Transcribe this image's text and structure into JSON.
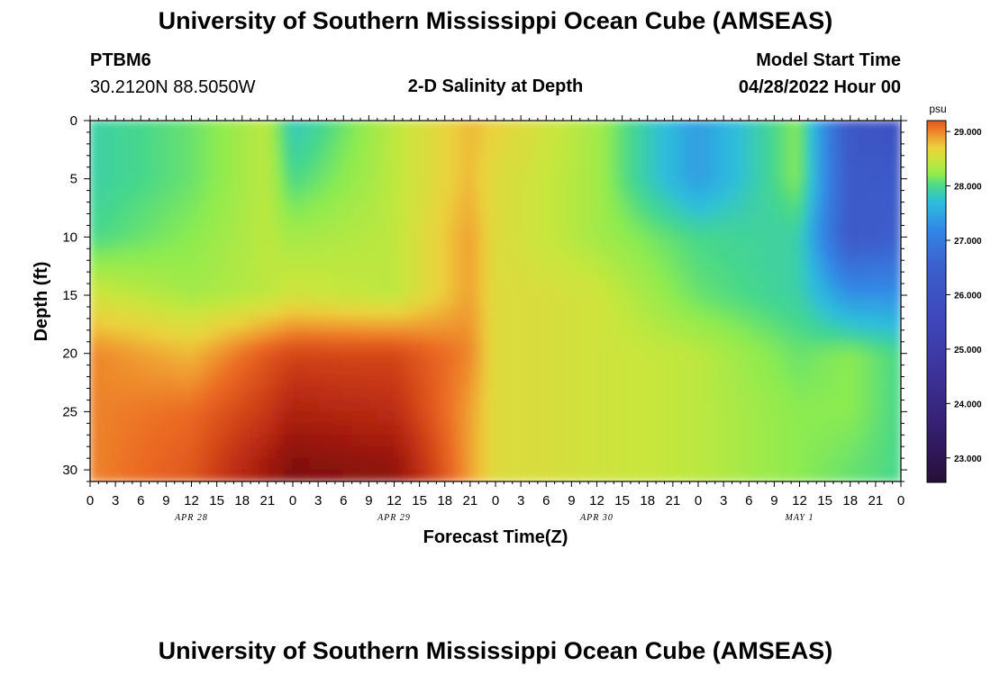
{
  "header": {
    "title": "University of Southern Mississippi Ocean Cube (AMSEAS)",
    "station_id": "PTBM6",
    "station_coords": "30.2120N  88.5050W",
    "plot_title": "2-D Salinity at Depth",
    "model_start_label": "Model Start Time",
    "model_start_value": "04/28/2022 Hour 00"
  },
  "footer": {
    "title": "University of Southern Mississippi Ocean Cube (AMSEAS)"
  },
  "colors": {
    "high_salinity": "#c0300f",
    "mid_salinity": "#f2d43a",
    "low_salinity": "#3c4fc0",
    "very_low_salinity": "#2a1245"
  },
  "chart_data": {
    "type": "heatmap",
    "variable": "Salinity",
    "xlabel": "Forecast Time(Z)",
    "ylabel": "Depth (ft)",
    "x_hours": [
      0,
      12,
      21,
      24,
      36,
      45,
      48,
      60,
      72,
      84,
      90,
      96
    ],
    "x_tick_labels": [
      "0",
      "3",
      "6",
      "9",
      "12",
      "15",
      "18",
      "21",
      "0",
      "3",
      "6",
      "9",
      "12",
      "15",
      "18",
      "21",
      "0",
      "3",
      "6",
      "9",
      "12",
      "15",
      "18",
      "21",
      "0",
      "3",
      "6",
      "9",
      "12",
      "15",
      "18",
      "21",
      "0"
    ],
    "day_labels": [
      {
        "label": "APR 28",
        "hour": 12
      },
      {
        "label": "APR 29",
        "hour": 36
      },
      {
        "label": "APR 30",
        "hour": 60
      },
      {
        "label": "MAY 1",
        "hour": 84
      }
    ],
    "xlim": [
      0,
      96
    ],
    "depths_ft": [
      0,
      5,
      10,
      15,
      20,
      25,
      30
    ],
    "y_ticks": [
      0,
      5,
      10,
      15,
      20,
      25,
      30
    ],
    "ylim": [
      0,
      31
    ],
    "values": [
      [
        27.9,
        28.1,
        28.4,
        27.8,
        28.4,
        28.8,
        28.7,
        28.3,
        27.4,
        28.2,
        26.2,
        25.8
      ],
      [
        27.9,
        28.1,
        28.4,
        28.0,
        28.4,
        28.8,
        28.6,
        28.3,
        27.4,
        28.2,
        26.3,
        26.3
      ],
      [
        28.0,
        28.2,
        28.4,
        28.3,
        28.4,
        28.9,
        28.6,
        28.3,
        28.0,
        27.9,
        26.3,
        26.5
      ],
      [
        28.5,
        28.3,
        28.4,
        28.5,
        28.4,
        28.9,
        28.6,
        28.5,
        28.1,
        27.9,
        27.3,
        27.3
      ],
      [
        29.0,
        28.8,
        29.2,
        29.3,
        29.3,
        29.0,
        28.6,
        28.5,
        28.4,
        28.1,
        28.2,
        28.0
      ],
      [
        29.0,
        29.1,
        29.4,
        29.6,
        29.5,
        28.9,
        28.6,
        28.5,
        28.4,
        28.2,
        28.2,
        28.0
      ],
      [
        29.0,
        29.2,
        29.7,
        29.9,
        29.8,
        28.9,
        28.6,
        28.5,
        28.4,
        28.2,
        28.1,
        28.0
      ]
    ],
    "colorbar": {
      "unit": "psu",
      "tick_labels": [
        "29.000",
        "28.000",
        "27.000",
        "26.000",
        "25.000",
        "24.000",
        "23.000"
      ],
      "tick_values": [
        29,
        28,
        27,
        26,
        25,
        24,
        23
      ],
      "range": [
        22.55,
        29.2
      ]
    }
  }
}
